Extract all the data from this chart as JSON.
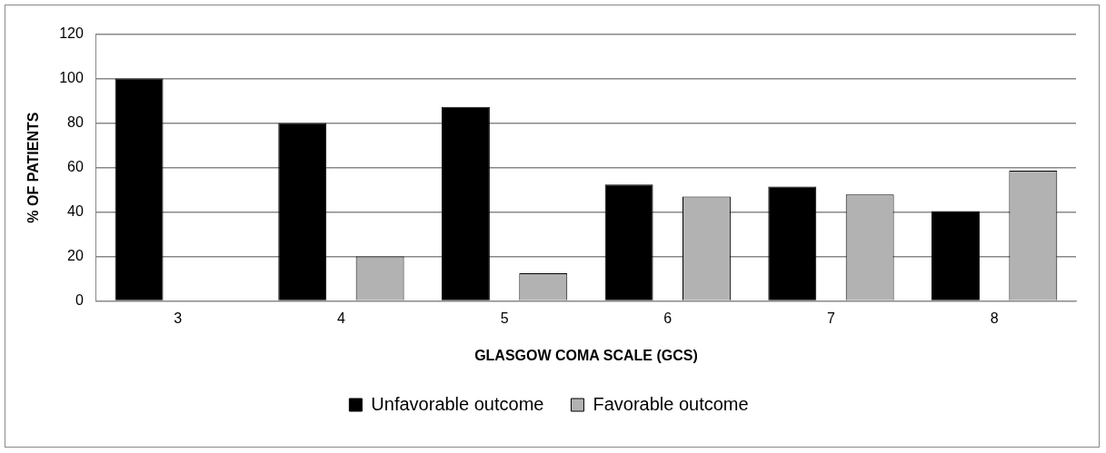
{
  "chart_data": {
    "type": "bar",
    "xlabel": "GLASGOW COMA SCALE (GCS)",
    "ylabel": "% OF PATIENTS",
    "categories": [
      "3",
      "4",
      "5",
      "6",
      "7",
      "8"
    ],
    "series": [
      {
        "name": "Unfavorable outcome",
        "color": "#000000",
        "values": [
          100,
          80,
          87.3,
          52.4,
          51.5,
          40.5
        ]
      },
      {
        "name": "Favorable outcome",
        "color": "#b2b2b2",
        "values": [
          0,
          20,
          12.5,
          47,
          47.9,
          58.6
        ]
      }
    ],
    "ylim": [
      0,
      120
    ],
    "yticks": [
      0,
      20,
      40,
      60,
      80,
      100,
      120
    ],
    "grid": "y",
    "legend": "bottom"
  }
}
